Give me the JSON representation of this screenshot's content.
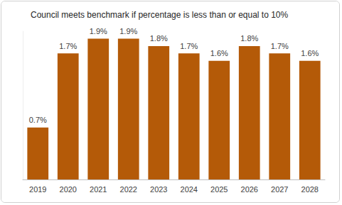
{
  "chart_data": {
    "type": "bar",
    "title": "Council meets benchmark if percentage is less than or equal to 10%",
    "categories": [
      "2019",
      "2020",
      "2021",
      "2022",
      "2023",
      "2024",
      "2025",
      "2026",
      "2027",
      "2028"
    ],
    "values": [
      0.7,
      1.7,
      1.9,
      1.9,
      1.8,
      1.7,
      1.6,
      1.8,
      1.7,
      1.6
    ],
    "value_labels": [
      "0.7%",
      "1.7%",
      "1.9%",
      "1.9%",
      "1.8%",
      "1.7%",
      "1.6%",
      "1.8%",
      "1.7%",
      "1.6%"
    ],
    "color": "#b45a08",
    "ylim": [
      0,
      2
    ],
    "grid": false,
    "data_labels": true,
    "tick_labels": "x"
  }
}
